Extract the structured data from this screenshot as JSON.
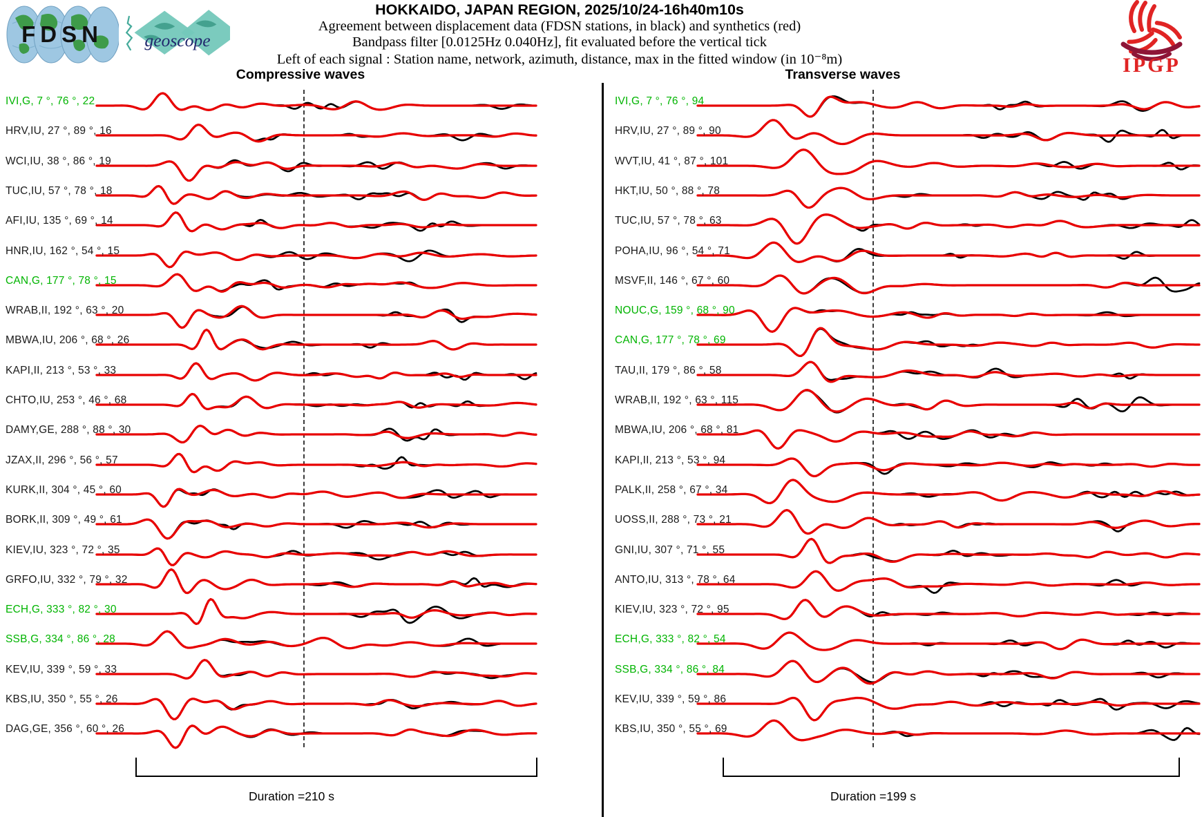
{
  "header": {
    "title": "HOKKAIDO, JAPAN REGION, 2025/10/24-16h40m10s",
    "line2": "Agreement between displacement data (FDSN stations, in black) and synthetics (red)",
    "line3": "Bandpass filter [0.0125Hz 0.040Hz], fit evaluated before the vertical tick",
    "line4": "Left of each signal : Station name, network, azimuth, distance, max in the fitted window (in 10⁻⁸m)",
    "logos": {
      "fdsn": "FDSN",
      "geoscope": "geoscope",
      "ipgp": "IPGP"
    }
  },
  "chart_data": {
    "type": "line",
    "kind": "seismogram-comparison",
    "legend": {
      "black": "displacement data (FDSN stations)",
      "red": "synthetics"
    },
    "trace_colors": {
      "data": "#000000",
      "synthetic": "#e80000",
      "station_green": "#00b400",
      "station_black": "#1a1a1a"
    },
    "panels": [
      {
        "title": "Compressive waves",
        "duration_label": "Duration =210 s",
        "stations": [
          {
            "label": "IVI,G, 7 °, 76 °, 22",
            "station": "IVI",
            "network": "G",
            "azimuth_deg": 7,
            "distance_deg": 76,
            "max_window": 22,
            "green": true
          },
          {
            "label": "HRV,IU, 27 °, 89 °, 16",
            "station": "HRV",
            "network": "IU",
            "azimuth_deg": 27,
            "distance_deg": 89,
            "max_window": 16,
            "green": false
          },
          {
            "label": "WCI,IU, 38 °, 86 °, 19",
            "station": "WCI",
            "network": "IU",
            "azimuth_deg": 38,
            "distance_deg": 86,
            "max_window": 19,
            "green": false
          },
          {
            "label": "TUC,IU, 57 °, 78 °, 18",
            "station": "TUC",
            "network": "IU",
            "azimuth_deg": 57,
            "distance_deg": 78,
            "max_window": 18,
            "green": false
          },
          {
            "label": "AFI,IU, 135 °, 69 °, 14",
            "station": "AFI",
            "network": "IU",
            "azimuth_deg": 135,
            "distance_deg": 69,
            "max_window": 14,
            "green": false
          },
          {
            "label": "HNR,IU, 162 °, 54 °, 15",
            "station": "HNR",
            "network": "IU",
            "azimuth_deg": 162,
            "distance_deg": 54,
            "max_window": 15,
            "green": false
          },
          {
            "label": "CAN,G, 177 °, 78 °, 15",
            "station": "CAN",
            "network": "G",
            "azimuth_deg": 177,
            "distance_deg": 78,
            "max_window": 15,
            "green": true
          },
          {
            "label": "WRAB,II, 192 °, 63 °, 20",
            "station": "WRAB",
            "network": "II",
            "azimuth_deg": 192,
            "distance_deg": 63,
            "max_window": 20,
            "green": false
          },
          {
            "label": "MBWA,IU, 206 °, 68 °, 26",
            "station": "MBWA",
            "network": "IU",
            "azimuth_deg": 206,
            "distance_deg": 68,
            "max_window": 26,
            "green": false
          },
          {
            "label": "KAPI,II, 213 °, 53 °, 33",
            "station": "KAPI",
            "network": "II",
            "azimuth_deg": 213,
            "distance_deg": 53,
            "max_window": 33,
            "green": false
          },
          {
            "label": "CHTO,IU, 253 °, 46 °, 68",
            "station": "CHTO",
            "network": "IU",
            "azimuth_deg": 253,
            "distance_deg": 46,
            "max_window": 68,
            "green": false
          },
          {
            "label": "DAMY,GE, 288 °, 88 °, 30",
            "station": "DAMY",
            "network": "GE",
            "azimuth_deg": 288,
            "distance_deg": 88,
            "max_window": 30,
            "green": false
          },
          {
            "label": "JZAX,II, 296 °, 56 °, 57",
            "station": "JZAX",
            "network": "II",
            "azimuth_deg": 296,
            "distance_deg": 56,
            "max_window": 57,
            "green": false
          },
          {
            "label": "KURK,II, 304 °, 45 °, 60",
            "station": "KURK",
            "network": "II",
            "azimuth_deg": 304,
            "distance_deg": 45,
            "max_window": 60,
            "green": false
          },
          {
            "label": "BORK,II, 309 °, 49 °, 61",
            "station": "BORK",
            "network": "II",
            "azimuth_deg": 309,
            "distance_deg": 49,
            "max_window": 61,
            "green": false
          },
          {
            "label": "KIEV,IU, 323 °, 72 °, 35",
            "station": "KIEV",
            "network": "IU",
            "azimuth_deg": 323,
            "distance_deg": 72,
            "max_window": 35,
            "green": false
          },
          {
            "label": "GRFO,IU, 332 °, 79 °, 32",
            "station": "GRFO",
            "network": "IU",
            "azimuth_deg": 332,
            "distance_deg": 79,
            "max_window": 32,
            "green": false
          },
          {
            "label": "ECH,G, 333 °, 82 °, 30",
            "station": "ECH",
            "network": "G",
            "azimuth_deg": 333,
            "distance_deg": 82,
            "max_window": 30,
            "green": true
          },
          {
            "label": "SSB,G, 334 °, 86 °, 28",
            "station": "SSB",
            "network": "G",
            "azimuth_deg": 334,
            "distance_deg": 86,
            "max_window": 28,
            "green": true
          },
          {
            "label": "KEV,IU, 339 °, 59 °, 33",
            "station": "KEV",
            "network": "IU",
            "azimuth_deg": 339,
            "distance_deg": 59,
            "max_window": 33,
            "green": false
          },
          {
            "label": "KBS,IU, 350 °, 55 °, 26",
            "station": "KBS",
            "network": "IU",
            "azimuth_deg": 350,
            "distance_deg": 55,
            "max_window": 26,
            "green": false
          },
          {
            "label": "DAG,GE, 356 °, 60 °, 26",
            "station": "DAG",
            "network": "GE",
            "azimuth_deg": 356,
            "distance_deg": 60,
            "max_window": 26,
            "green": false
          }
        ]
      },
      {
        "title": "Transverse waves",
        "duration_label": "Duration =199 s",
        "stations": [
          {
            "label": "IVI,G, 7 °, 76 °, 94",
            "station": "IVI",
            "network": "G",
            "azimuth_deg": 7,
            "distance_deg": 76,
            "max_window": 94,
            "green": true
          },
          {
            "label": "HRV,IU, 27 °, 89 °, 90",
            "station": "HRV",
            "network": "IU",
            "azimuth_deg": 27,
            "distance_deg": 89,
            "max_window": 90,
            "green": false
          },
          {
            "label": "WVT,IU, 41 °, 87 °, 101",
            "station": "WVT",
            "network": "IU",
            "azimuth_deg": 41,
            "distance_deg": 87,
            "max_window": 101,
            "green": false
          },
          {
            "label": "HKT,IU, 50 °, 88 °, 78",
            "station": "HKT",
            "network": "IU",
            "azimuth_deg": 50,
            "distance_deg": 88,
            "max_window": 78,
            "green": false
          },
          {
            "label": "TUC,IU, 57 °, 78 °, 63",
            "station": "TUC",
            "network": "IU",
            "azimuth_deg": 57,
            "distance_deg": 78,
            "max_window": 63,
            "green": false
          },
          {
            "label": "POHA,IU, 96 °, 54 °, 71",
            "station": "POHA",
            "network": "IU",
            "azimuth_deg": 96,
            "distance_deg": 54,
            "max_window": 71,
            "green": false
          },
          {
            "label": "MSVF,II, 146 °, 67 °, 60",
            "station": "MSVF",
            "network": "II",
            "azimuth_deg": 146,
            "distance_deg": 67,
            "max_window": 60,
            "green": false
          },
          {
            "label": "NOUC,G, 159 °, 68 °, 90",
            "station": "NOUC",
            "network": "G",
            "azimuth_deg": 159,
            "distance_deg": 68,
            "max_window": 90,
            "green": true
          },
          {
            "label": "CAN,G, 177 °, 78 °, 69",
            "station": "CAN",
            "network": "G",
            "azimuth_deg": 177,
            "distance_deg": 78,
            "max_window": 69,
            "green": true
          },
          {
            "label": "TAU,II, 179 °, 86 °, 58",
            "station": "TAU",
            "network": "II",
            "azimuth_deg": 179,
            "distance_deg": 86,
            "max_window": 58,
            "green": false
          },
          {
            "label": "WRAB,II, 192 °, 63 °, 115",
            "station": "WRAB",
            "network": "II",
            "azimuth_deg": 192,
            "distance_deg": 63,
            "max_window": 115,
            "green": false
          },
          {
            "label": "MBWA,IU, 206 °, 68 °, 81",
            "station": "MBWA",
            "network": "IU",
            "azimuth_deg": 206,
            "distance_deg": 68,
            "max_window": 81,
            "green": false
          },
          {
            "label": "KAPI,II, 213 °, 53 °, 94",
            "station": "KAPI",
            "network": "II",
            "azimuth_deg": 213,
            "distance_deg": 53,
            "max_window": 94,
            "green": false
          },
          {
            "label": "PALK,II, 258 °, 67 °, 34",
            "station": "PALK",
            "network": "II",
            "azimuth_deg": 258,
            "distance_deg": 67,
            "max_window": 34,
            "green": false
          },
          {
            "label": "UOSS,II, 288 °, 73 °, 21",
            "station": "UOSS",
            "network": "II",
            "azimuth_deg": 288,
            "distance_deg": 73,
            "max_window": 21,
            "green": false
          },
          {
            "label": "GNI,IU, 307 °, 71 °, 55",
            "station": "GNI",
            "network": "IU",
            "azimuth_deg": 307,
            "distance_deg": 71,
            "max_window": 55,
            "green": false
          },
          {
            "label": "ANTO,IU, 313 °, 78 °, 64",
            "station": "ANTO",
            "network": "IU",
            "azimuth_deg": 313,
            "distance_deg": 78,
            "max_window": 64,
            "green": false
          },
          {
            "label": "KIEV,IU, 323 °, 72 °, 95",
            "station": "KIEV",
            "network": "IU",
            "azimuth_deg": 323,
            "distance_deg": 72,
            "max_window": 95,
            "green": false
          },
          {
            "label": "ECH,G, 333 °, 82 °, 54",
            "station": "ECH",
            "network": "G",
            "azimuth_deg": 333,
            "distance_deg": 82,
            "max_window": 54,
            "green": true
          },
          {
            "label": "SSB,G, 334 °, 86 °, 84",
            "station": "SSB",
            "network": "G",
            "azimuth_deg": 334,
            "distance_deg": 86,
            "max_window": 84,
            "green": true
          },
          {
            "label": "KEV,IU, 339 °, 59 °, 86",
            "station": "KEV",
            "network": "IU",
            "azimuth_deg": 339,
            "distance_deg": 59,
            "max_window": 86,
            "green": false
          },
          {
            "label": "KBS,IU, 350 °, 55 °, 69",
            "station": "KBS",
            "network": "IU",
            "azimuth_deg": 350,
            "distance_deg": 55,
            "max_window": 69,
            "green": false
          }
        ]
      }
    ]
  }
}
